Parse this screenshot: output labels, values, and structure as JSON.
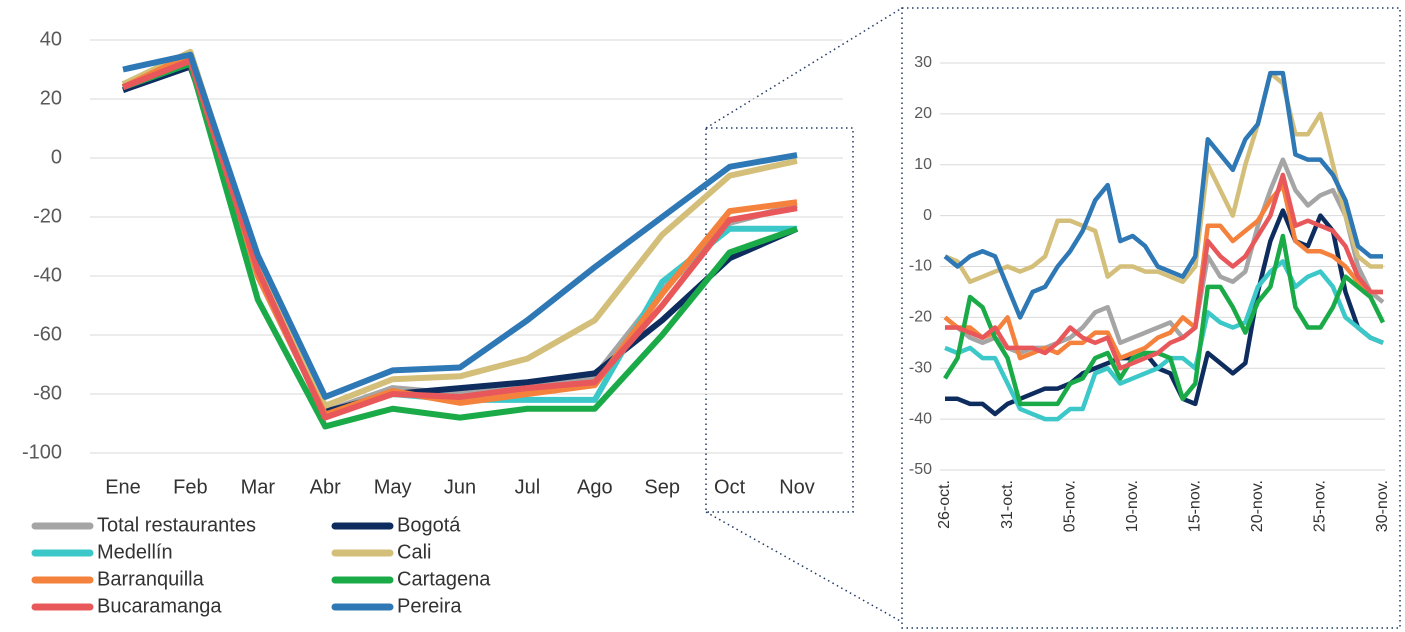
{
  "chart_data": [
    {
      "type": "line",
      "categories": [
        "Ene",
        "Feb",
        "Mar",
        "Abr",
        "May",
        "Jun",
        "Jul",
        "Ago",
        "Sep",
        "Oct",
        "Nov"
      ],
      "ylim": [
        -100,
        40
      ],
      "yticks": [
        -100,
        -80,
        -60,
        -40,
        -20,
        0,
        20,
        40
      ],
      "grid": true,
      "legend": "bottom",
      "series": [
        {
          "name": "Total restaurantes",
          "color": "#a5a5a5",
          "values": [
            25,
            33,
            -35,
            -86,
            -78,
            -80,
            -78,
            -74,
            -45,
            -22,
            -16
          ]
        },
        {
          "name": "Bogotá",
          "color": "#0e2d5e",
          "values": [
            23,
            31,
            -35,
            -86,
            -80,
            -78,
            -76,
            -73,
            -55,
            -34,
            -24
          ]
        },
        {
          "name": "Medellín",
          "color": "#3cc8c8",
          "values": [
            24,
            32,
            -40,
            -87,
            -80,
            -82,
            -82,
            -82,
            -42,
            -24,
            -24
          ]
        },
        {
          "name": "Cali",
          "color": "#d4bf7a",
          "values": [
            25,
            36,
            -35,
            -84,
            -75,
            -74,
            -68,
            -55,
            -26,
            -6,
            -1
          ]
        },
        {
          "name": "Barranquilla",
          "color": "#f4823c",
          "values": [
            24,
            35,
            -40,
            -87,
            -79,
            -83,
            -80,
            -77,
            -46,
            -18,
            -15
          ]
        },
        {
          "name": "Cartagena",
          "color": "#1aab48",
          "values": [
            24,
            32,
            -48,
            -91,
            -85,
            -88,
            -85,
            -85,
            -60,
            -32,
            -24
          ]
        },
        {
          "name": "Bucaramanga",
          "color": "#e8585a",
          "values": [
            24,
            33,
            -38,
            -88,
            -80,
            -81,
            -78,
            -76,
            -50,
            -21,
            -17
          ]
        },
        {
          "name": "Pereira",
          "color": "#2e78b5",
          "values": [
            30,
            35,
            -33,
            -81,
            -72,
            -71,
            -55,
            -37,
            -20,
            -3,
            1
          ]
        }
      ]
    },
    {
      "type": "line",
      "categories": [
        "26-oct.",
        null,
        null,
        null,
        null,
        "31-oct.",
        null,
        null,
        null,
        null,
        "05-nov.",
        null,
        null,
        null,
        null,
        "10-nov.",
        null,
        null,
        null,
        null,
        "15-nov.",
        null,
        null,
        null,
        null,
        "20-nov.",
        null,
        null,
        null,
        null,
        "25-nov.",
        null,
        null,
        null,
        null,
        "30-nov."
      ],
      "ylim": [
        -50,
        30
      ],
      "yticks": [
        -50,
        -40,
        -30,
        -20,
        -10,
        0,
        10,
        20,
        30
      ],
      "grid": true,
      "series": [
        {
          "color": "#a5a5a5",
          "values": [
            -22,
            -22,
            -24,
            -25,
            -24,
            -26,
            -27,
            -26,
            -26,
            -25,
            -24,
            -22,
            -19,
            -18,
            -25,
            -24,
            -23,
            -22,
            -21,
            -24,
            -22,
            -8,
            -12,
            -13,
            -11,
            -2,
            5,
            11,
            5,
            2,
            4,
            5,
            0,
            -10,
            -15,
            -17
          ]
        },
        {
          "color": "#0e2d5e",
          "values": [
            -36,
            -36,
            -37,
            -37,
            -39,
            -37,
            -36,
            -35,
            -34,
            -34,
            -33,
            -31,
            -30,
            -29,
            -28,
            -28,
            -27,
            -30,
            -31,
            -36,
            -37,
            -27,
            -29,
            -31,
            -29,
            -15,
            -5,
            1,
            -5,
            -6,
            0,
            -3,
            -15,
            -22,
            -24,
            -25
          ]
        },
        {
          "color": "#3cc8c8",
          "values": [
            -26,
            -27,
            -26,
            -28,
            -28,
            -33,
            -38,
            -39,
            -40,
            -40,
            -38,
            -38,
            -31,
            -30,
            -33,
            -32,
            -31,
            -30,
            -28,
            -28,
            -30,
            -19,
            -21,
            -22,
            -21,
            -14,
            -11,
            -9,
            -14,
            -12,
            -11,
            -14,
            -20,
            -22,
            -24,
            -25
          ]
        },
        {
          "color": "#d4bf7a",
          "values": [
            -8,
            -9,
            -13,
            -12,
            -11,
            -10,
            -11,
            -10,
            -8,
            -1,
            -1,
            -2,
            -3,
            -12,
            -10,
            -10,
            -11,
            -11,
            -12,
            -13,
            -10,
            10,
            5,
            0,
            10,
            18,
            28,
            26,
            16,
            16,
            20,
            10,
            0,
            -8,
            -10,
            -10
          ]
        },
        {
          "color": "#f4823c",
          "values": [
            -20,
            -22,
            -22,
            -24,
            -23,
            -20,
            -28,
            -27,
            -26,
            -27,
            -25,
            -25,
            -23,
            -23,
            -28,
            -27,
            -26,
            -24,
            -23,
            -20,
            -22,
            -2,
            -2,
            -5,
            -3,
            -1,
            3,
            6,
            -5,
            -7,
            -7,
            -8,
            -10,
            -13,
            -15,
            -15
          ]
        },
        {
          "color": "#1aab48",
          "values": [
            -32,
            -28,
            -16,
            -18,
            -24,
            -28,
            -37,
            -37,
            -37,
            -37,
            -33,
            -32,
            -28,
            -27,
            -32,
            -28,
            -27,
            -27,
            -28,
            -36,
            -33,
            -14,
            -14,
            -18,
            -23,
            -17,
            -14,
            -4,
            -18,
            -22,
            -22,
            -18,
            -12,
            -14,
            -16,
            -21
          ]
        },
        {
          "color": "#e8585a",
          "values": [
            -22,
            -22,
            -23,
            -24,
            -22,
            -26,
            -26,
            -26,
            -27,
            -25,
            -22,
            -24,
            -25,
            -24,
            -30,
            -29,
            -28,
            -27,
            -25,
            -24,
            -22,
            -5,
            -8,
            -10,
            -8,
            -4,
            0,
            8,
            -2,
            -1,
            -2,
            -3,
            -6,
            -12,
            -15,
            -15
          ]
        },
        {
          "color": "#2e78b5",
          "values": [
            -8,
            -10,
            -8,
            -7,
            -8,
            -14,
            -20,
            -15,
            -14,
            -10,
            -7,
            -3,
            3,
            6,
            -5,
            -4,
            -6,
            -10,
            -11,
            -12,
            -8,
            15,
            12,
            9,
            15,
            18,
            28,
            28,
            12,
            11,
            11,
            8,
            3,
            -6,
            -8,
            -8
          ]
        }
      ]
    }
  ]
}
